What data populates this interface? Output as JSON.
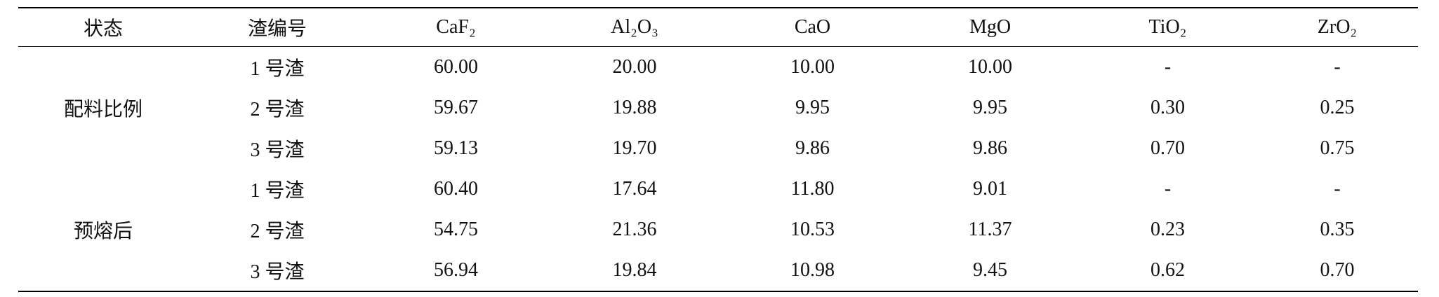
{
  "table": {
    "header": [
      "状态",
      "渣编号",
      "CaF₂",
      "Al₂O₃",
      "CaO",
      "MgO",
      "TiO₂",
      "ZrO₂"
    ],
    "groups": [
      {
        "state": "配料比例",
        "rows": [
          [
            "1 号渣",
            "60.00",
            "20.00",
            "10.00",
            "10.00",
            "-",
            "-"
          ],
          [
            "2 号渣",
            "59.67",
            "19.88",
            "9.95",
            "9.95",
            "0.30",
            "0.25"
          ],
          [
            "3 号渣",
            "59.13",
            "19.70",
            "9.86",
            "9.86",
            "0.70",
            "0.75"
          ]
        ]
      },
      {
        "state": "预熔后",
        "rows": [
          [
            "1 号渣",
            "60.40",
            "17.64",
            "11.80",
            "9.01",
            "-",
            "-"
          ],
          [
            "2 号渣",
            "54.75",
            "21.36",
            "10.53",
            "11.37",
            "0.23",
            "0.35"
          ],
          [
            "3 号渣",
            "56.94",
            "19.84",
            "10.98",
            "9.45",
            "0.62",
            "0.70"
          ]
        ]
      }
    ]
  }
}
